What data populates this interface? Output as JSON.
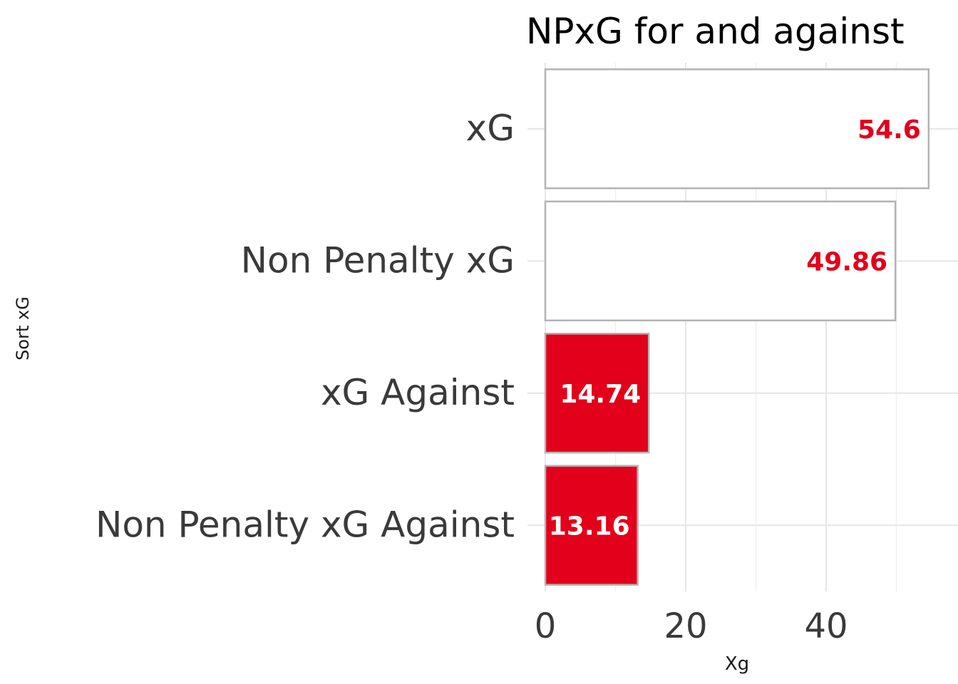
{
  "chart_data": {
    "type": "bar",
    "orientation": "horizontal",
    "title": "NPxG for and against",
    "xlabel": "Xg",
    "ylabel": "Sort xG",
    "categories": [
      "xG",
      "Non Penalty xG",
      "xG Against",
      "Non Penalty xG Against"
    ],
    "values": [
      54.6,
      49.86,
      14.74,
      13.16
    ],
    "value_labels": [
      "54.6",
      "49.86",
      "14.74",
      "13.16"
    ],
    "fills": [
      "#ffffff",
      "#ffffff",
      "#e3001b",
      "#e3001b"
    ],
    "label_colors": [
      "#e3001b",
      "#e3001b",
      "#ffffff",
      "#ffffff"
    ],
    "bar_outline_color": "#b3b3b3",
    "xlim": [
      0,
      58.5
    ],
    "xticks": [
      0,
      20,
      40
    ],
    "xtick_labels": [
      "0",
      "20",
      "40"
    ],
    "grid": true,
    "legend": "none"
  }
}
